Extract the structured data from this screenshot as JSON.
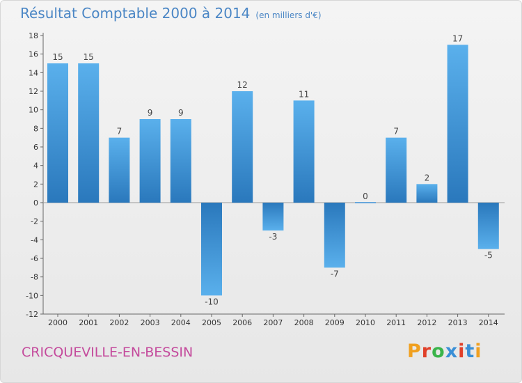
{
  "header": {
    "title": "Résultat Comptable 2000 à 2014",
    "subtitle": "(en milliers d'€)"
  },
  "footer": {
    "commune": "CRICQUEVILLE-EN-BESSIN",
    "logo_text": "Proxiti",
    "logo_colors": [
      "#f0a020",
      "#e0402a",
      "#3ab44a",
      "#3a8fd6",
      "#e0402a",
      "#3a8fd6",
      "#f0a020"
    ]
  },
  "chart_data": {
    "type": "bar",
    "title": "Résultat Comptable 2000 à 2014",
    "subtitle": "(en milliers d'€)",
    "xlabel": "",
    "ylabel": "",
    "categories": [
      "2000",
      "2001",
      "2002",
      "2003",
      "2004",
      "2005",
      "2006",
      "2007",
      "2008",
      "2009",
      "2010",
      "2011",
      "2012",
      "2013",
      "2014"
    ],
    "values": [
      15,
      15,
      7,
      9,
      9,
      -10,
      12,
      -3,
      11,
      -7,
      0,
      7,
      2,
      17,
      -5
    ],
    "data_labels": [
      "15",
      "15",
      "7",
      "9",
      "9",
      "-10",
      "12",
      "-3",
      "11",
      "-7",
      "0",
      "7",
      "2",
      "17",
      "-5"
    ],
    "ylim": [
      -12,
      18
    ],
    "yticks": [
      18,
      16,
      14,
      12,
      10,
      8,
      6,
      4,
      2,
      0,
      -2,
      -4,
      -6,
      -8,
      -10,
      -12
    ],
    "ytick_labels": [
      "18",
      "16",
      "14",
      "12",
      "10",
      "8",
      "6",
      "4",
      "2",
      "0",
      "-2",
      "-4",
      "-6",
      "-8",
      "-10",
      "-12"
    ],
    "grid": false,
    "legend": "none",
    "bar_color": "#3a8fd6"
  }
}
